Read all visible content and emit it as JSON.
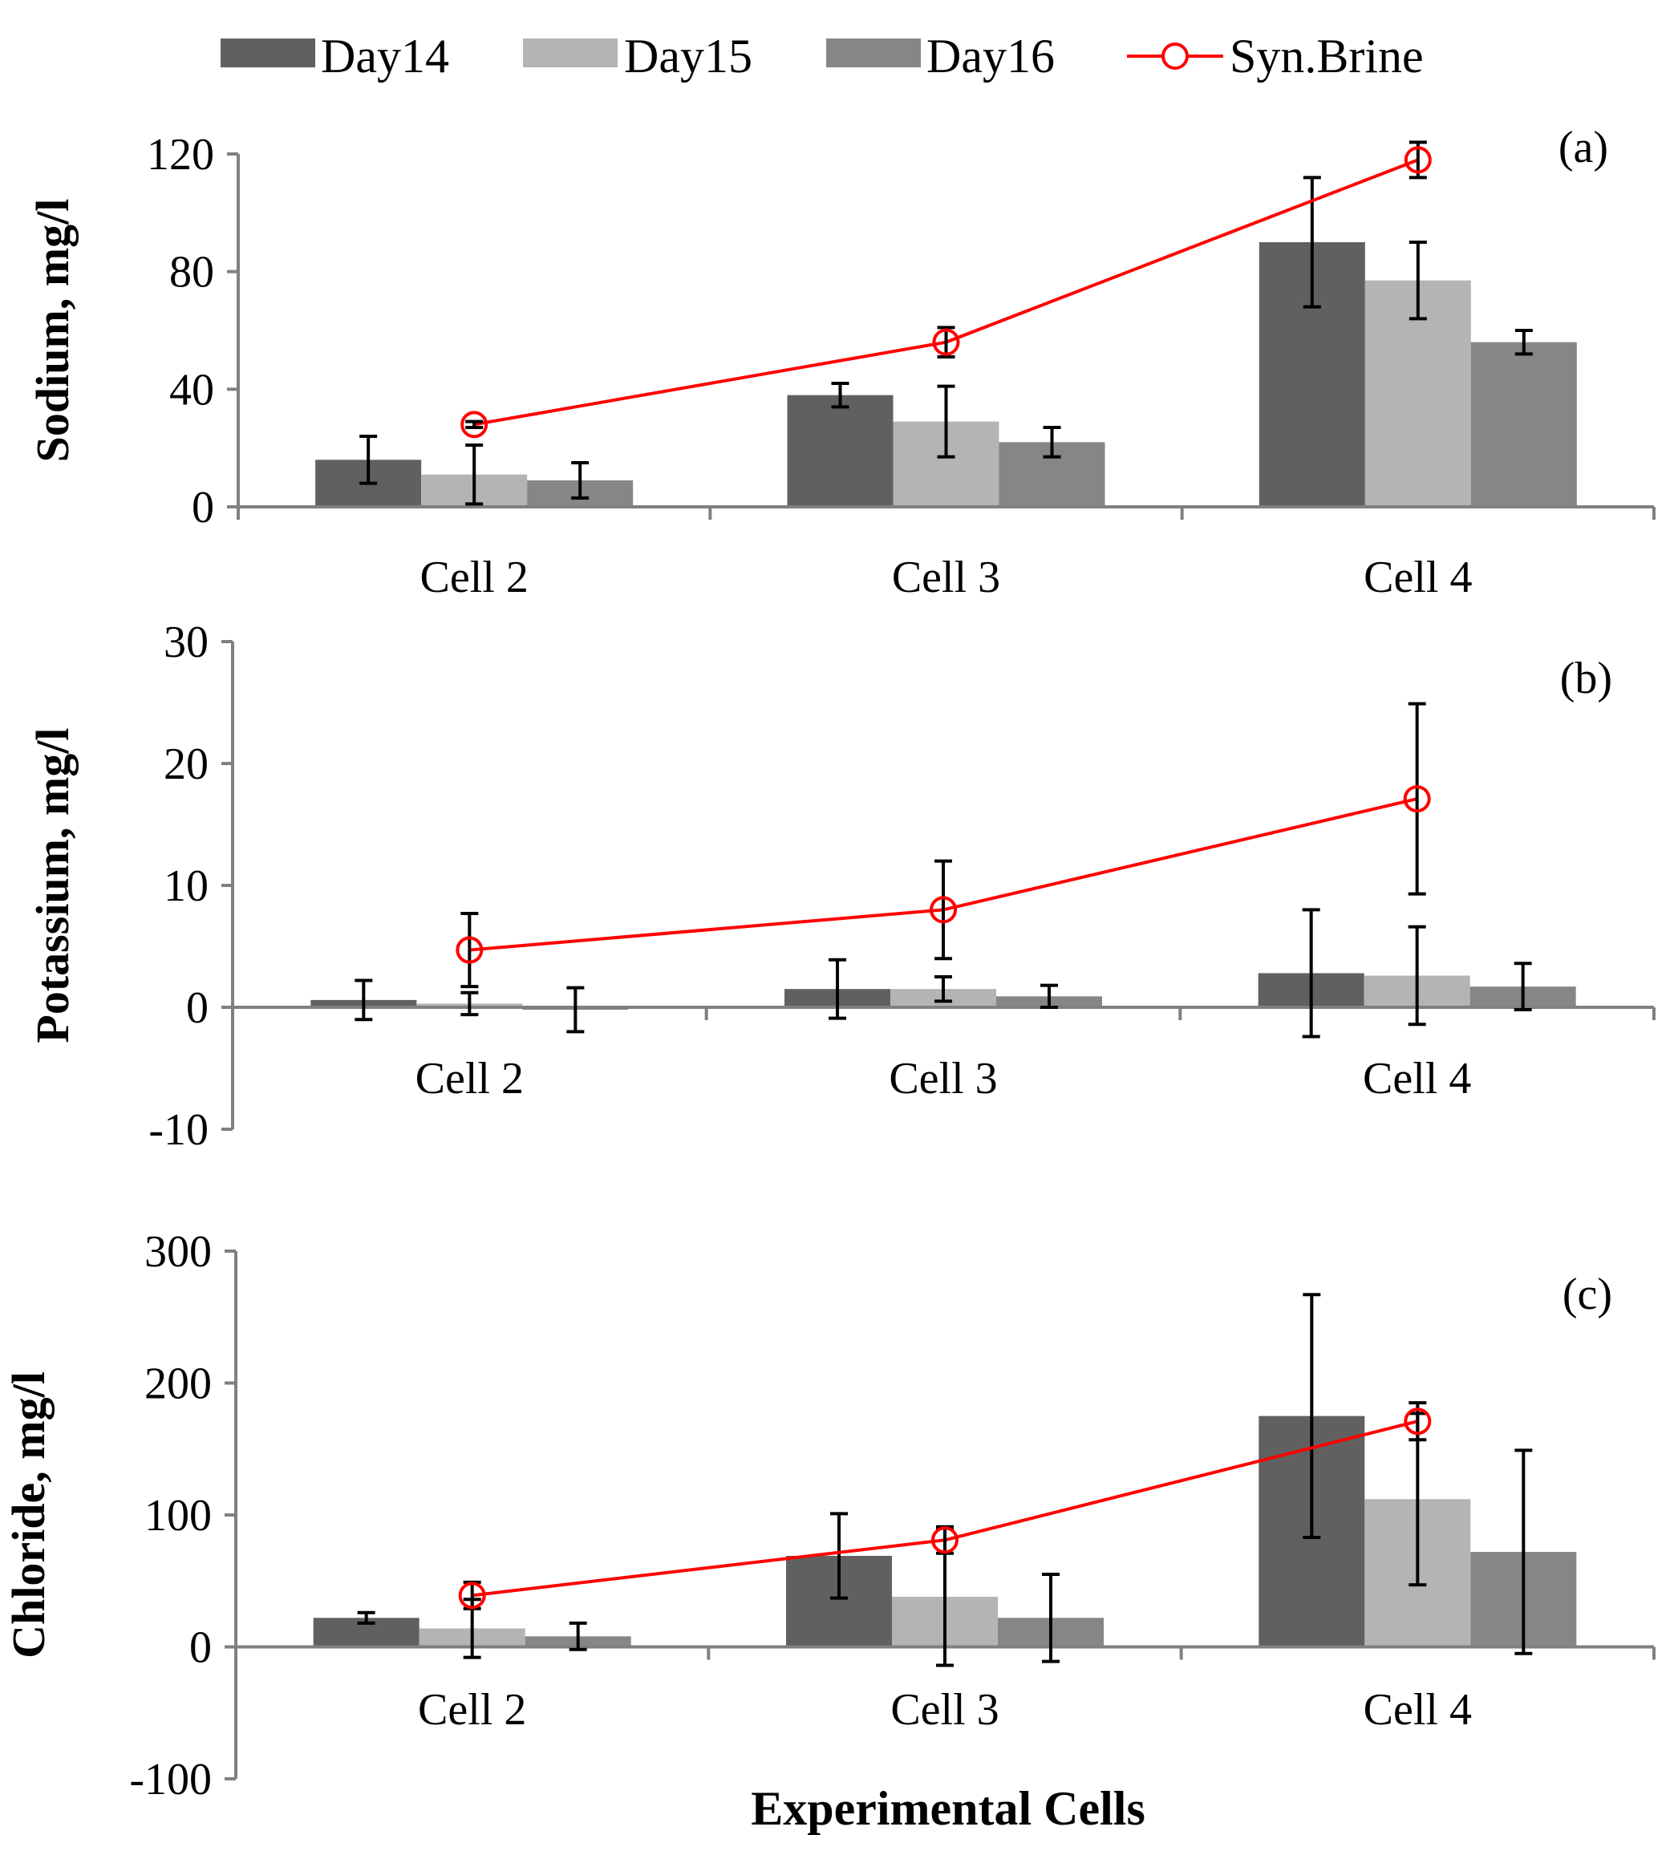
{
  "legend": {
    "items": [
      {
        "label": "Day14",
        "color": "#606060",
        "kind": "bar"
      },
      {
        "label": "Day15",
        "color": "#b4b4b4",
        "kind": "bar"
      },
      {
        "label": "Day16",
        "color": "#868686",
        "kind": "bar"
      },
      {
        "label": "Syn.Brine",
        "color": "#ff0000",
        "kind": "line-marker"
      }
    ]
  },
  "x_title": "Experimental Cells",
  "chart_data": [
    {
      "type": "bar",
      "panel": "(a)",
      "ylabel": "Sodium, mg/l",
      "categories": [
        "Cell 2",
        "Cell 3",
        "Cell 4"
      ],
      "ylim": [
        0,
        120
      ],
      "yticks": [
        0,
        40,
        80,
        120
      ],
      "series": [
        {
          "name": "Day14",
          "values": [
            16,
            38,
            90
          ],
          "errors": [
            8,
            4,
            22
          ]
        },
        {
          "name": "Day15",
          "values": [
            11,
            29,
            77
          ],
          "errors": [
            10,
            12,
            13
          ]
        },
        {
          "name": "Day16",
          "values": [
            9,
            22,
            56
          ],
          "errors": [
            6,
            5,
            4
          ]
        }
      ],
      "line": {
        "name": "Syn.Brine",
        "values": [
          28,
          56,
          118
        ],
        "errors": [
          1,
          5,
          6
        ]
      }
    },
    {
      "type": "bar",
      "panel": "(b)",
      "ylabel": "Potassium, mg/l",
      "categories": [
        "Cell 2",
        "Cell 3",
        "Cell 4"
      ],
      "ylim": [
        -10,
        30
      ],
      "yticks": [
        -10,
        0,
        10,
        20,
        30
      ],
      "series": [
        {
          "name": "Day14",
          "values": [
            0.6,
            1.5,
            2.8
          ],
          "errors": [
            1.6,
            2.4,
            5.2
          ]
        },
        {
          "name": "Day15",
          "values": [
            0.3,
            1.5,
            2.6
          ],
          "errors": [
            0.9,
            1.0,
            4.0
          ]
        },
        {
          "name": "Day16",
          "values": [
            -0.2,
            0.9,
            1.7
          ],
          "errors": [
            1.8,
            0.9,
            1.9
          ]
        }
      ],
      "line": {
        "name": "Syn.Brine",
        "values": [
          4.7,
          8.0,
          17.1
        ],
        "errors": [
          3.0,
          4.0,
          7.8
        ]
      }
    },
    {
      "type": "bar",
      "panel": "(c)",
      "ylabel": "Chloride, mg/l",
      "categories": [
        "Cell 2",
        "Cell 3",
        "Cell 4"
      ],
      "ylim": [
        -100,
        300
      ],
      "yticks": [
        -100,
        0,
        100,
        200,
        300
      ],
      "series": [
        {
          "name": "Day14",
          "values": [
            22,
            69,
            175
          ],
          "errors": [
            4,
            32,
            92
          ]
        },
        {
          "name": "Day15",
          "values": [
            14,
            38,
            112
          ],
          "errors": [
            22,
            52,
            65
          ]
        },
        {
          "name": "Day16",
          "values": [
            8,
            22,
            72
          ],
          "errors": [
            10,
            33,
            77
          ]
        }
      ],
      "line": {
        "name": "Syn.Brine",
        "values": [
          39,
          81,
          171
        ],
        "errors": [
          10,
          10,
          14
        ]
      }
    }
  ]
}
